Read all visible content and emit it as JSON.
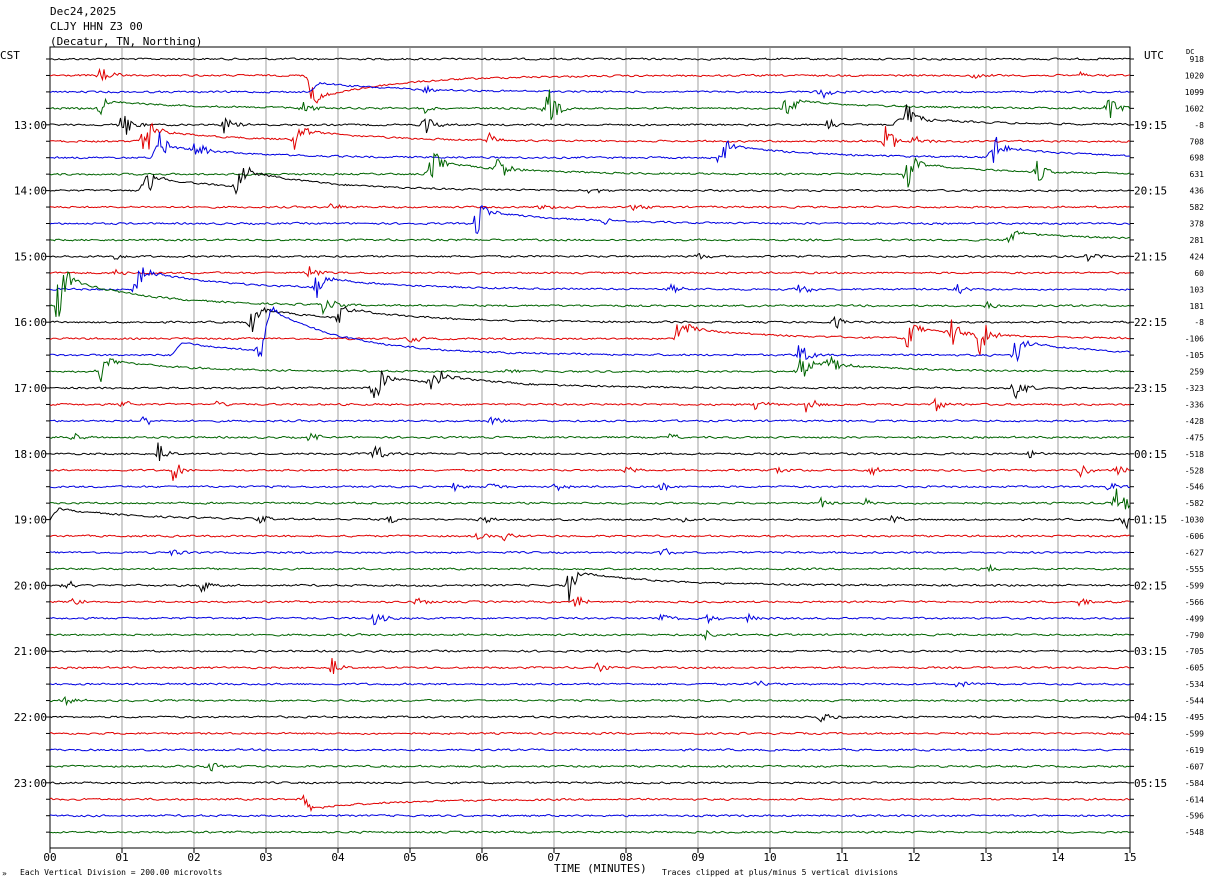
{
  "header": {
    "date": "Dec24,2025",
    "station": "CLJY HHN Z3 00",
    "location": "(Decatur, TN, Northing)"
  },
  "left_axis": {
    "label": "CST"
  },
  "right_axis": {
    "label": "UTC",
    "dc_label": "DC"
  },
  "footer": {
    "scale_note": "Each Vertical Division =  200.00 microvolts",
    "clip_note": "Traces clipped at plus/minus 5 vertical divisions",
    "corner_mark": "»"
  },
  "chart_data": {
    "type": "line",
    "title": "CLJY HHN Z3 00",
    "xlabel": "TIME (MINUTES)",
    "xlim": [
      0,
      15
    ],
    "x_ticks": [
      "00",
      "01",
      "02",
      "03",
      "04",
      "05",
      "06",
      "07",
      "08",
      "09",
      "10",
      "11",
      "12",
      "13",
      "14",
      "15"
    ],
    "trace_colors": [
      "#000000",
      "#e00000",
      "#0000e0",
      "#006400"
    ],
    "trace_count": 48,
    "left_time_labels": [
      {
        "trace": 4,
        "label": "13:00"
      },
      {
        "trace": 8,
        "label": "14:00"
      },
      {
        "trace": 12,
        "label": "15:00"
      },
      {
        "trace": 16,
        "label": "16:00"
      },
      {
        "trace": 20,
        "label": "17:00"
      },
      {
        "trace": 24,
        "label": "18:00"
      },
      {
        "trace": 28,
        "label": "19:00"
      },
      {
        "trace": 32,
        "label": "20:00"
      },
      {
        "trace": 36,
        "label": "21:00"
      },
      {
        "trace": 40,
        "label": "22:00"
      },
      {
        "trace": 44,
        "label": "23:00"
      }
    ],
    "right_time_labels": [
      {
        "trace": 4,
        "label": "19:15"
      },
      {
        "trace": 8,
        "label": "20:15"
      },
      {
        "trace": 12,
        "label": "21:15"
      },
      {
        "trace": 16,
        "label": "22:15"
      },
      {
        "trace": 20,
        "label": "23:15"
      },
      {
        "trace": 24,
        "label": "00:15"
      },
      {
        "trace": 28,
        "label": "01:15"
      },
      {
        "trace": 32,
        "label": "02:15"
      },
      {
        "trace": 36,
        "label": "03:15"
      },
      {
        "trace": 40,
        "label": "04:15"
      },
      {
        "trace": 44,
        "label": "05:15"
      }
    ],
    "dc_offsets": [
      "918",
      "1020",
      "1099",
      "1602",
      "-8",
      "708",
      "698",
      "631",
      "436",
      "582",
      "378",
      "281",
      "424",
      "60",
      "103",
      "181",
      "-8",
      "-106",
      "-105",
      "259",
      "-323",
      "-336",
      "-428",
      "-475",
      "-518",
      "-528",
      "-546",
      "-582",
      "-1030",
      "-606",
      "-627",
      "-555",
      "-599",
      "-566",
      "-499",
      "-790",
      "-705",
      "-605",
      "-534",
      "-544",
      "-495",
      "-599",
      "-619",
      "-607",
      "-584",
      "-614",
      "-596",
      "-548"
    ],
    "events": [
      {
        "trace": 1,
        "minute": 0.7,
        "amp": 10
      },
      {
        "trace": 1,
        "minute": 3.6,
        "amp": 16
      },
      {
        "trace": 1,
        "minute": 12.8,
        "amp": 6
      },
      {
        "trace": 1,
        "minute": 14.3,
        "amp": 5
      },
      {
        "trace": 2,
        "minute": 10.7,
        "amp": 10
      },
      {
        "trace": 2,
        "minute": 5.2,
        "amp": 5
      },
      {
        "trace": 3,
        "minute": 0.7,
        "amp": 10
      },
      {
        "trace": 3,
        "minute": 3.5,
        "amp": 10
      },
      {
        "trace": 3,
        "minute": 5.2,
        "amp": 8
      },
      {
        "trace": 3,
        "minute": 6.9,
        "amp": 28
      },
      {
        "trace": 3,
        "minute": 10.2,
        "amp": 14
      },
      {
        "trace": 3,
        "minute": 14.7,
        "amp": 18
      },
      {
        "trace": 4,
        "minute": 1.0,
        "amp": 20
      },
      {
        "trace": 4,
        "minute": 2.4,
        "amp": 12
      },
      {
        "trace": 4,
        "minute": 5.2,
        "amp": 12
      },
      {
        "trace": 4,
        "minute": 10.8,
        "amp": 10
      },
      {
        "trace": 4,
        "minute": 11.9,
        "amp": 18
      },
      {
        "trace": 5,
        "minute": 1.3,
        "amp": 28
      },
      {
        "trace": 5,
        "minute": 3.4,
        "amp": 14
      },
      {
        "trace": 5,
        "minute": 6.1,
        "amp": 8
      },
      {
        "trace": 5,
        "minute": 11.6,
        "amp": 18
      },
      {
        "trace": 5,
        "minute": 12.0,
        "amp": 10
      },
      {
        "trace": 6,
        "minute": 1.5,
        "amp": 18
      },
      {
        "trace": 6,
        "minute": 2.0,
        "amp": 14
      },
      {
        "trace": 6,
        "minute": 9.3,
        "amp": 16
      },
      {
        "trace": 6,
        "minute": 13.1,
        "amp": 18
      },
      {
        "trace": 7,
        "minute": 5.3,
        "amp": 16
      },
      {
        "trace": 7,
        "minute": 6.2,
        "amp": 18
      },
      {
        "trace": 7,
        "minute": 11.9,
        "amp": 20
      },
      {
        "trace": 7,
        "minute": 13.7,
        "amp": 14
      },
      {
        "trace": 8,
        "minute": 1.3,
        "amp": 24
      },
      {
        "trace": 8,
        "minute": 2.6,
        "amp": 16
      },
      {
        "trace": 8,
        "minute": 7.5,
        "amp": 5
      },
      {
        "trace": 9,
        "minute": 3.9,
        "amp": 6
      },
      {
        "trace": 9,
        "minute": 6.8,
        "amp": 5
      },
      {
        "trace": 9,
        "minute": 8.1,
        "amp": 5
      },
      {
        "trace": 10,
        "minute": 5.9,
        "amp": 22
      },
      {
        "trace": 10,
        "minute": 7.7,
        "amp": 5
      },
      {
        "trace": 11,
        "minute": 13.3,
        "amp": 8
      },
      {
        "trace": 12,
        "minute": 0.9,
        "amp": 6
      },
      {
        "trace": 12,
        "minute": 9.0,
        "amp": 5
      },
      {
        "trace": 12,
        "minute": 14.4,
        "amp": 6
      },
      {
        "trace": 13,
        "minute": 0.9,
        "amp": 5
      },
      {
        "trace": 13,
        "minute": 3.6,
        "amp": 10
      },
      {
        "trace": 14,
        "minute": 1.2,
        "amp": 18
      },
      {
        "trace": 14,
        "minute": 3.7,
        "amp": 16
      },
      {
        "trace": 14,
        "minute": 8.6,
        "amp": 6
      },
      {
        "trace": 14,
        "minute": 10.4,
        "amp": 8
      },
      {
        "trace": 14,
        "minute": 12.6,
        "amp": 8
      },
      {
        "trace": 15,
        "minute": 0.1,
        "amp": 30
      },
      {
        "trace": 15,
        "minute": 3.8,
        "amp": 12
      },
      {
        "trace": 15,
        "minute": 13.0,
        "amp": 6
      },
      {
        "trace": 16,
        "minute": 2.8,
        "amp": 14
      },
      {
        "trace": 16,
        "minute": 4.0,
        "amp": 10
      },
      {
        "trace": 16,
        "minute": 10.9,
        "amp": 8
      },
      {
        "trace": 17,
        "minute": 8.7,
        "amp": 20
      },
      {
        "trace": 17,
        "minute": 11.9,
        "amp": 16
      },
      {
        "trace": 17,
        "minute": 12.5,
        "amp": 20
      },
      {
        "trace": 17,
        "minute": 12.9,
        "amp": 24
      },
      {
        "trace": 17,
        "minute": 5.0,
        "amp": 6
      },
      {
        "trace": 18,
        "minute": 2.9,
        "amp": 20
      },
      {
        "trace": 18,
        "minute": 13.4,
        "amp": 18
      },
      {
        "trace": 18,
        "minute": 10.4,
        "amp": 16
      },
      {
        "trace": 19,
        "minute": 0.7,
        "amp": 14
      },
      {
        "trace": 19,
        "minute": 10.4,
        "amp": 20
      },
      {
        "trace": 19,
        "minute": 10.8,
        "amp": 16
      },
      {
        "trace": 19,
        "minute": 6.3,
        "amp": 6
      },
      {
        "trace": 20,
        "minute": 4.5,
        "amp": 28
      },
      {
        "trace": 20,
        "minute": 5.3,
        "amp": 18
      },
      {
        "trace": 20,
        "minute": 13.4,
        "amp": 16
      },
      {
        "trace": 21,
        "minute": 1.0,
        "amp": 6
      },
      {
        "trace": 21,
        "minute": 2.3,
        "amp": 5
      },
      {
        "trace": 21,
        "minute": 9.8,
        "amp": 8
      },
      {
        "trace": 21,
        "minute": 10.5,
        "amp": 10
      },
      {
        "trace": 21,
        "minute": 12.3,
        "amp": 8
      },
      {
        "trace": 22,
        "minute": 1.3,
        "amp": 8
      },
      {
        "trace": 22,
        "minute": 6.1,
        "amp": 6
      },
      {
        "trace": 23,
        "minute": 0.3,
        "amp": 6
      },
      {
        "trace": 23,
        "minute": 3.6,
        "amp": 6
      },
      {
        "trace": 23,
        "minute": 8.6,
        "amp": 5
      },
      {
        "trace": 24,
        "minute": 1.5,
        "amp": 14
      },
      {
        "trace": 24,
        "minute": 4.5,
        "amp": 12
      },
      {
        "trace": 24,
        "minute": 13.6,
        "amp": 5
      },
      {
        "trace": 25,
        "minute": 1.7,
        "amp": 12
      },
      {
        "trace": 25,
        "minute": 8.0,
        "amp": 5
      },
      {
        "trace": 25,
        "minute": 10.1,
        "amp": 5
      },
      {
        "trace": 25,
        "minute": 11.4,
        "amp": 5
      },
      {
        "trace": 25,
        "minute": 14.3,
        "amp": 8
      },
      {
        "trace": 25,
        "minute": 14.8,
        "amp": 8
      },
      {
        "trace": 26,
        "minute": 5.6,
        "amp": 6
      },
      {
        "trace": 26,
        "minute": 6.1,
        "amp": 6
      },
      {
        "trace": 26,
        "minute": 7.0,
        "amp": 5
      },
      {
        "trace": 26,
        "minute": 8.5,
        "amp": 6
      },
      {
        "trace": 26,
        "minute": 14.7,
        "amp": 6
      },
      {
        "trace": 27,
        "minute": 10.7,
        "amp": 6
      },
      {
        "trace": 27,
        "minute": 11.3,
        "amp": 5
      },
      {
        "trace": 27,
        "minute": 14.8,
        "amp": 22
      },
      {
        "trace": 28,
        "minute": 2.9,
        "amp": 5
      },
      {
        "trace": 28,
        "minute": 4.7,
        "amp": 5
      },
      {
        "trace": 28,
        "minute": 6.0,
        "amp": 6
      },
      {
        "trace": 28,
        "minute": 8.8,
        "amp": 5
      },
      {
        "trace": 28,
        "minute": 11.7,
        "amp": 5
      },
      {
        "trace": 28,
        "minute": 14.9,
        "amp": 14
      },
      {
        "trace": 29,
        "minute": 5.9,
        "amp": 6
      },
      {
        "trace": 29,
        "minute": 6.3,
        "amp": 6
      },
      {
        "trace": 30,
        "minute": 1.7,
        "amp": 5
      },
      {
        "trace": 30,
        "minute": 8.5,
        "amp": 6
      },
      {
        "trace": 31,
        "minute": 13.0,
        "amp": 6
      },
      {
        "trace": 32,
        "minute": 0.2,
        "amp": 8
      },
      {
        "trace": 32,
        "minute": 2.1,
        "amp": 8
      },
      {
        "trace": 32,
        "minute": 7.2,
        "amp": 18
      },
      {
        "trace": 33,
        "minute": 0.3,
        "amp": 6
      },
      {
        "trace": 33,
        "minute": 5.1,
        "amp": 5
      },
      {
        "trace": 33,
        "minute": 7.3,
        "amp": 10
      },
      {
        "trace": 33,
        "minute": 14.3,
        "amp": 6
      },
      {
        "trace": 34,
        "minute": 4.5,
        "amp": 8
      },
      {
        "trace": 34,
        "minute": 8.5,
        "amp": 8
      },
      {
        "trace": 34,
        "minute": 9.1,
        "amp": 6
      },
      {
        "trace": 34,
        "minute": 9.7,
        "amp": 5
      },
      {
        "trace": 35,
        "minute": 9.1,
        "amp": 6
      },
      {
        "trace": 37,
        "minute": 3.9,
        "amp": 14
      },
      {
        "trace": 37,
        "minute": 7.6,
        "amp": 5
      },
      {
        "trace": 38,
        "minute": 9.8,
        "amp": 6
      },
      {
        "trace": 38,
        "minute": 12.6,
        "amp": 5
      },
      {
        "trace": 39,
        "minute": 0.2,
        "amp": 6
      },
      {
        "trace": 40,
        "minute": 10.7,
        "amp": 8
      },
      {
        "trace": 43,
        "minute": 2.2,
        "amp": 8
      },
      {
        "trace": 45,
        "minute": 3.5,
        "amp": 6
      }
    ],
    "baseline_steps": [
      {
        "trace": 1,
        "minute": 3.55,
        "peak": 26
      },
      {
        "trace": 2,
        "minute": 3.62,
        "peak": -10
      },
      {
        "trace": 3,
        "minute": 0.7,
        "peak": -8
      },
      {
        "trace": 3,
        "minute": 10.3,
        "peak": -8
      },
      {
        "trace": 4,
        "minute": 11.7,
        "peak": -8
      },
      {
        "trace": 5,
        "minute": 1.3,
        "peak": -12
      },
      {
        "trace": 5,
        "minute": 3.4,
        "peak": -10
      },
      {
        "trace": 6,
        "minute": 1.4,
        "peak": -14
      },
      {
        "trace": 6,
        "minute": 9.3,
        "peak": -14
      },
      {
        "trace": 6,
        "minute": 13.0,
        "peak": -12
      },
      {
        "trace": 7,
        "minute": 5.2,
        "peak": -14
      },
      {
        "trace": 7,
        "minute": 11.9,
        "peak": -12
      },
      {
        "trace": 8,
        "minute": 1.3,
        "peak": -14
      },
      {
        "trace": 8,
        "minute": 2.6,
        "peak": -18
      },
      {
        "trace": 10,
        "minute": 5.9,
        "peak": -14
      },
      {
        "trace": 11,
        "minute": 13.3,
        "peak": -8
      },
      {
        "trace": 14,
        "minute": 1.2,
        "peak": -20
      },
      {
        "trace": 14,
        "minute": 3.7,
        "peak": -10
      },
      {
        "trace": 15,
        "minute": 0.1,
        "peak": -30
      },
      {
        "trace": 16,
        "minute": 2.8,
        "peak": -14
      },
      {
        "trace": 16,
        "minute": 4.0,
        "peak": -10
      },
      {
        "trace": 17,
        "minute": 8.7,
        "peak": -12
      },
      {
        "trace": 17,
        "minute": 11.9,
        "peak": -10
      },
      {
        "trace": 18,
        "minute": 1.7,
        "peak": -14
      },
      {
        "trace": 18,
        "minute": 2.95,
        "peak": -46
      },
      {
        "trace": 18,
        "minute": 13.4,
        "peak": -14
      },
      {
        "trace": 19,
        "minute": 0.7,
        "peak": -12
      },
      {
        "trace": 19,
        "minute": 10.5,
        "peak": -10
      },
      {
        "trace": 20,
        "minute": 4.5,
        "peak": -12
      },
      {
        "trace": 20,
        "minute": 5.3,
        "peak": -8
      },
      {
        "trace": 28,
        "minute": 0.0,
        "peak": -12
      },
      {
        "trace": 32,
        "minute": 7.25,
        "peak": -14
      },
      {
        "trace": 45,
        "minute": 3.5,
        "peak": 10
      }
    ]
  }
}
